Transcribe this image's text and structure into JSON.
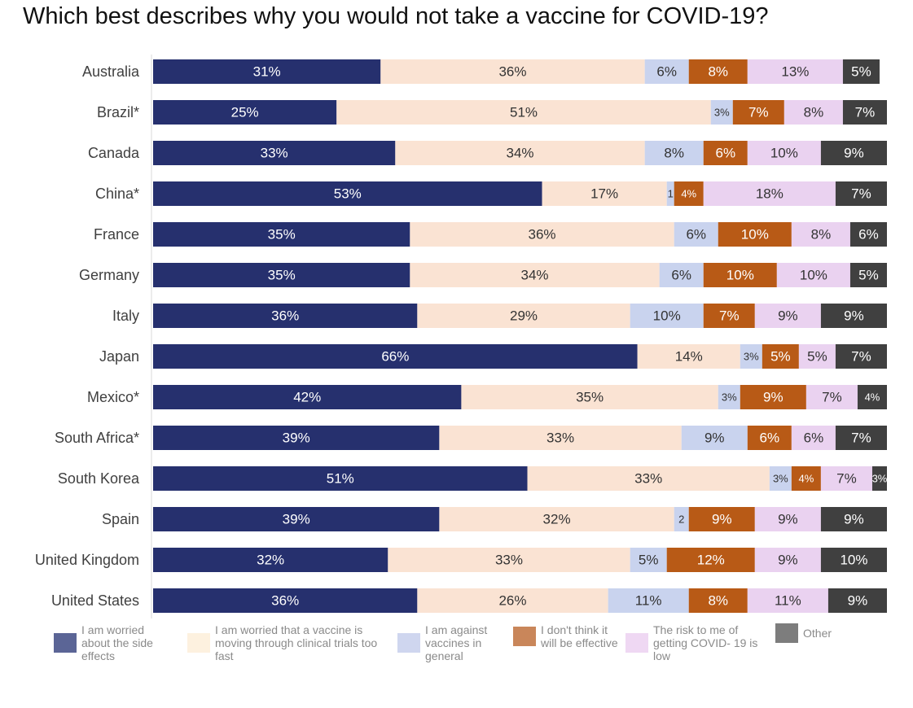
{
  "title": "Which best describes why you would not take a vaccine for COVID-19?",
  "colors": [
    "#26306e",
    "#fae3d3",
    "#c9d3ee",
    "#b85a16",
    "#ead2f0",
    "#404040"
  ],
  "legend_colors": [
    "#5b6596",
    "#fdf1df",
    "#cfd6ef",
    "#c9865a",
    "#efd8f3",
    "#7d7d7d"
  ],
  "text_colors": [
    "#ffffff",
    "#333333",
    "#333333",
    "#ffffff",
    "#333333",
    "#ffffff"
  ],
  "legend": {
    "items": [
      "I am worried about the side effects",
      "I am worried that a vaccine is moving through clinical trials too fast",
      "I am against vaccines in general",
      "I don't think it will be effective",
      "The risk to me of getting COVID- 19 is low",
      "Other"
    ]
  },
  "chart_data": {
    "type": "bar",
    "orientation": "horizontal",
    "stacked": true,
    "title": "Which best describes why you would not take a vaccine for COVID-19?",
    "categories": [
      "Australia",
      "Brazil*",
      "Canada",
      "China*",
      "France",
      "Germany",
      "Italy",
      "Japan",
      "Mexico*",
      "South Africa*",
      "South Korea",
      "Spain",
      "United Kingdom",
      "United States"
    ],
    "series": [
      {
        "name": "I am worried about the side effects",
        "values": [
          31,
          25,
          33,
          53,
          35,
          35,
          36,
          66,
          42,
          39,
          51,
          39,
          32,
          36
        ]
      },
      {
        "name": "I am worried that a vaccine is moving through clinical trials too fast",
        "values": [
          36,
          51,
          34,
          17,
          36,
          34,
          29,
          14,
          35,
          33,
          33,
          32,
          33,
          26
        ]
      },
      {
        "name": "I am against vaccines in general",
        "values": [
          6,
          3,
          8,
          1,
          6,
          6,
          10,
          3,
          3,
          9,
          3,
          2,
          5,
          11
        ]
      },
      {
        "name": "I don't think it will be effective",
        "values": [
          8,
          7,
          6,
          4,
          10,
          10,
          7,
          5,
          9,
          6,
          4,
          9,
          12,
          8
        ]
      },
      {
        "name": "The risk to me of getting COVID- 19 is low",
        "values": [
          13,
          8,
          10,
          18,
          8,
          10,
          9,
          5,
          7,
          6,
          7,
          9,
          9,
          11
        ]
      },
      {
        "name": "Other",
        "values": [
          5,
          7,
          9,
          7,
          6,
          5,
          9,
          7,
          4,
          7,
          3,
          9,
          10,
          9
        ]
      }
    ],
    "labels": [
      [
        "31%",
        "36%",
        "6%",
        "8%",
        "13%",
        "5%"
      ],
      [
        "25%",
        "51%",
        "3%",
        "7%",
        "8%",
        "7%"
      ],
      [
        "33%",
        "34%",
        "8%",
        "6%",
        "10%",
        "9%"
      ],
      [
        "53%",
        "17%",
        "1",
        "4%",
        "18%",
        "7%"
      ],
      [
        "35%",
        "36%",
        "6%",
        "10%",
        "8%",
        "6%"
      ],
      [
        "35%",
        "34%",
        "6%",
        "10%",
        "10%",
        "5%"
      ],
      [
        "36%",
        "29%",
        "10%",
        "7%",
        "9%",
        "9%"
      ],
      [
        "66%",
        "14%",
        "3%",
        "5%",
        "5%",
        "7%"
      ],
      [
        "42%",
        "35%",
        "3%",
        "9%",
        "7%",
        "4%"
      ],
      [
        "39%",
        "33%",
        "9%",
        "6%",
        "6%",
        "7%"
      ],
      [
        "51%",
        "33%",
        "3%",
        "4%",
        "7%",
        "3%"
      ],
      [
        "39%",
        "32%",
        "2",
        "9%",
        "9%",
        "9%"
      ],
      [
        "32%",
        "33%",
        "5%",
        "12%",
        "9%",
        "10%"
      ],
      [
        "36%",
        "26%",
        "11%",
        "8%",
        "11%",
        "9%"
      ]
    ],
    "xlim": [
      0,
      100
    ],
    "legend_position": "bottom",
    "grid": false
  }
}
